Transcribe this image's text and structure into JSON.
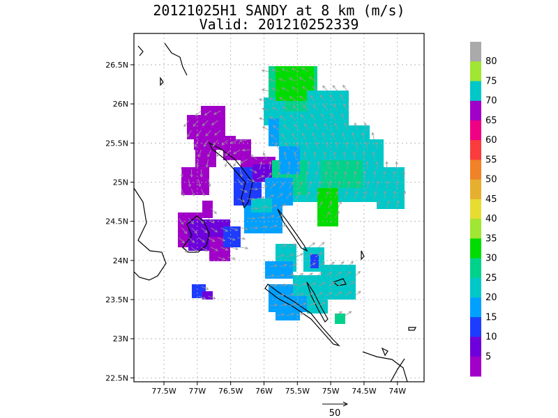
{
  "title_line1": "20121025H1 SANDY at 8 km (m/s)",
  "title_line2": "Valid: 201210252339",
  "map": {
    "lat_ticks": [
      "26.5N",
      "26N",
      "25.5N",
      "25N",
      "24.5N",
      "24N",
      "23.5N",
      "23N",
      "22.5N"
    ],
    "lat_values": [
      26.5,
      26,
      25.5,
      25,
      24.5,
      24,
      23.5,
      23,
      22.5
    ],
    "lon_ticks": [
      "77.5W",
      "77W",
      "76.5W",
      "76W",
      "75.5W",
      "75W",
      "74.5W",
      "74W"
    ],
    "lon_values": [
      -77.5,
      -77,
      -76.5,
      -76,
      -75.5,
      -75,
      -74.5,
      -74
    ],
    "lat_range": [
      22.45,
      26.9
    ],
    "lon_range": [
      -77.95,
      -73.6
    ]
  },
  "colorbar": {
    "labels": [
      "5",
      "10",
      "15",
      "20",
      "25",
      "30",
      "35",
      "40",
      "45",
      "50",
      "55",
      "60",
      "65",
      "70",
      "75",
      "80"
    ],
    "colors": [
      "#a000c8",
      "#6e00dc",
      "#1e3cff",
      "#00a0ff",
      "#00c8c8",
      "#00d28c",
      "#00dc00",
      "#a0e632",
      "#e6dc32",
      "#e6af2d",
      "#f08228",
      "#fa3c3c",
      "#f00082",
      "#a000c8",
      "#00c8c8",
      "#a0e632",
      "#aaaaaa"
    ]
  },
  "vector_legend": {
    "label": "50"
  }
}
